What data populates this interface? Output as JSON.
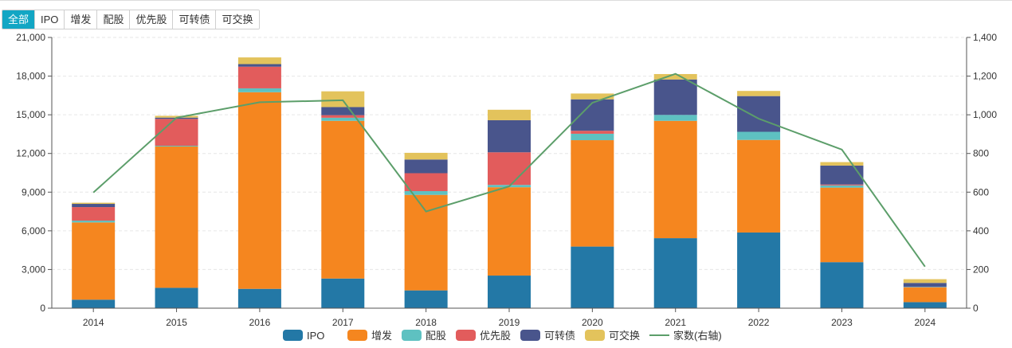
{
  "tabs": [
    {
      "label": "全部",
      "active": true
    },
    {
      "label": "IPO",
      "active": false
    },
    {
      "label": "增发",
      "active": false
    },
    {
      "label": "配股",
      "active": false
    },
    {
      "label": "优先股",
      "active": false
    },
    {
      "label": "可转债",
      "active": false
    },
    {
      "label": "可交换",
      "active": false
    }
  ],
  "chart_data": {
    "type": "bar",
    "stacked": true,
    "categories": [
      "2014",
      "2015",
      "2016",
      "2017",
      "2018",
      "2019",
      "2020",
      "2021",
      "2022",
      "2023",
      "2024"
    ],
    "series": [
      {
        "name": "IPO",
        "color": "#2378a6",
        "values": [
          660,
          1580,
          1500,
          2300,
          1380,
          2530,
          4780,
          5430,
          5870,
          3570,
          470
        ]
      },
      {
        "name": "增发",
        "color": "#f5861f",
        "values": [
          5990,
          10960,
          15250,
          12230,
          7410,
          6850,
          8250,
          9100,
          7180,
          5780,
          1150
        ]
      },
      {
        "name": "配股",
        "color": "#5ec1c1",
        "values": [
          140,
          60,
          300,
          240,
          290,
          180,
          500,
          460,
          630,
          170,
          30
        ]
      },
      {
        "name": "优先股",
        "color": "#e25c5c",
        "values": [
          1050,
          2080,
          1680,
          200,
          1390,
          2530,
          230,
          0,
          0,
          70,
          0
        ]
      },
      {
        "name": "可转债",
        "color": "#49558c",
        "values": [
          250,
          100,
          200,
          630,
          1060,
          2490,
          2440,
          2750,
          2770,
          1470,
          310
        ]
      },
      {
        "name": "可交换",
        "color": "#e3c35c",
        "values": [
          90,
          140,
          520,
          1220,
          520,
          810,
          450,
          420,
          400,
          270,
          290
        ]
      }
    ],
    "line": {
      "name": "家数(右轴)",
      "color": "#5c9e6a",
      "values": [
        598,
        985,
        1065,
        1075,
        500,
        630,
        1062,
        1212,
        980,
        820,
        215
      ]
    },
    "y_left": {
      "min": 0,
      "max": 21000,
      "ticks": [
        "0",
        "3,000",
        "6,000",
        "9,000",
        "12,000",
        "15,000",
        "18,000",
        "21,000"
      ]
    },
    "y_right": {
      "min": 0,
      "max": 1400,
      "ticks": [
        "0",
        "200",
        "400",
        "600",
        "800",
        "1,000",
        "1,200",
        "1,400"
      ]
    },
    "grid": true,
    "legend_position": "bottom-center"
  }
}
